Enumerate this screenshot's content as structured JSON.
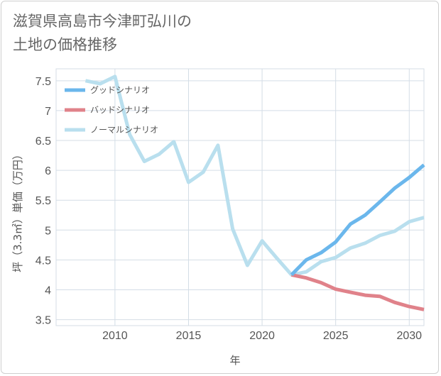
{
  "title_line1": "滋賀県高島市今津町弘川の",
  "title_line2": "土地の価格推移",
  "chart_data": {
    "type": "line",
    "xlabel": "年",
    "ylabel": "坪（3.3㎡）単価（万円）",
    "xlim": [
      2006,
      2031
    ],
    "ylim": [
      3.4,
      7.7
    ],
    "xticks": [
      2010,
      2015,
      2020,
      2025,
      2030
    ],
    "yticks": [
      3.5,
      4,
      4.5,
      5,
      5.5,
      6,
      6.5,
      7,
      7.5
    ],
    "grid": true,
    "legend_position": "top-left",
    "series": [
      {
        "name": "グッドシナリオ",
        "color": "#6bb7ec",
        "points": [
          [
            2022,
            4.25
          ],
          [
            2023,
            4.5
          ],
          [
            2024,
            4.62
          ],
          [
            2025,
            4.8
          ],
          [
            2026,
            5.1
          ],
          [
            2027,
            5.25
          ],
          [
            2028,
            5.47
          ],
          [
            2029,
            5.7
          ],
          [
            2030,
            5.88
          ],
          [
            2031,
            6.09
          ]
        ]
      },
      {
        "name": "バッドシナリオ",
        "color": "#e0828a",
        "points": [
          [
            2022,
            4.25
          ],
          [
            2023,
            4.2
          ],
          [
            2024,
            4.12
          ],
          [
            2025,
            4.01
          ],
          [
            2026,
            3.96
          ],
          [
            2027,
            3.91
          ],
          [
            2028,
            3.89
          ],
          [
            2029,
            3.79
          ],
          [
            2030,
            3.72
          ],
          [
            2031,
            3.67
          ]
        ]
      },
      {
        "name": "ノーマルシナリオ",
        "color": "#b9dfee",
        "points": [
          [
            2008,
            7.5
          ],
          [
            2009,
            7.45
          ],
          [
            2010,
            7.57
          ],
          [
            2011,
            6.6
          ],
          [
            2012,
            6.15
          ],
          [
            2013,
            6.27
          ],
          [
            2014,
            6.48
          ],
          [
            2015,
            5.8
          ],
          [
            2016,
            5.97
          ],
          [
            2017,
            6.42
          ],
          [
            2018,
            5.02
          ],
          [
            2019,
            4.41
          ],
          [
            2020,
            4.82
          ],
          [
            2021,
            4.53
          ],
          [
            2022,
            4.25
          ],
          [
            2023,
            4.3
          ],
          [
            2024,
            4.47
          ],
          [
            2025,
            4.54
          ],
          [
            2026,
            4.7
          ],
          [
            2027,
            4.78
          ],
          [
            2028,
            4.91
          ],
          [
            2029,
            4.98
          ],
          [
            2030,
            5.14
          ],
          [
            2031,
            5.21
          ]
        ]
      }
    ]
  }
}
